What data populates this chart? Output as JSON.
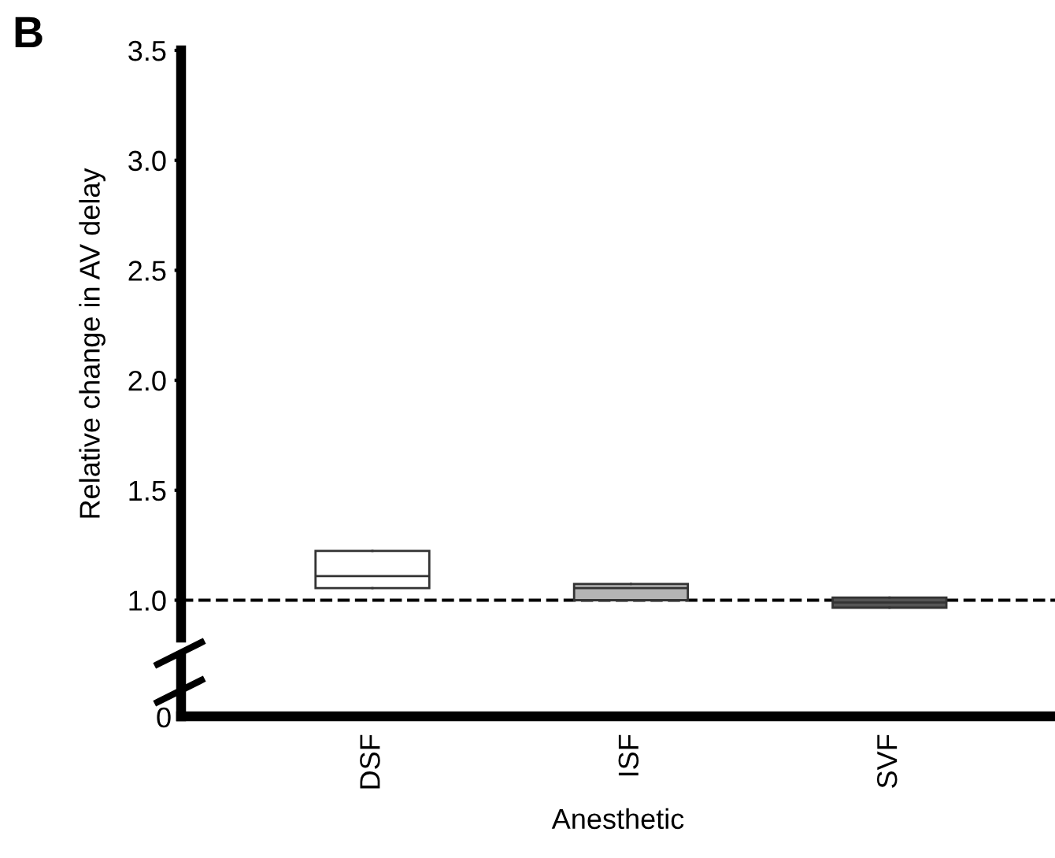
{
  "chart_data": {
    "type": "box",
    "ylabel": "Relative change in AV delay",
    "xlabel": "Anesthetic",
    "annotations": [
      "B",
      "0"
    ],
    "categories": [
      "DSF",
      "ISF",
      "SVF"
    ],
    "colors": [
      "#ffffff",
      "#b4b4b4",
      "#555555"
    ],
    "boxes": [
      {
        "low": 1.055,
        "q1": 1.055,
        "median": 1.11,
        "q3": 1.224,
        "high": 1.224
      },
      {
        "low": 1.0,
        "q1": 1.0,
        "median": 1.055,
        "q3": 1.074,
        "high": 1.074
      },
      {
        "low": 0.966,
        "q1": 0.966,
        "median": 0.99,
        "q3": 1.012,
        "high": 1.012
      }
    ],
    "ylim": [
      0.83,
      3.5
    ],
    "yticks": [
      {
        "value": 1.0,
        "label": "1.0"
      },
      1.5,
      {
        "value": 2.0,
        "label": "2.0"
      },
      2.5,
      {
        "value": 3.0,
        "label": "3.0"
      },
      3.5
    ],
    "ref_lines": [
      {
        "axis": "y",
        "value": 1.0,
        "color": "#000000",
        "line_style": "dashed"
      }
    ],
    "grid": false
  }
}
